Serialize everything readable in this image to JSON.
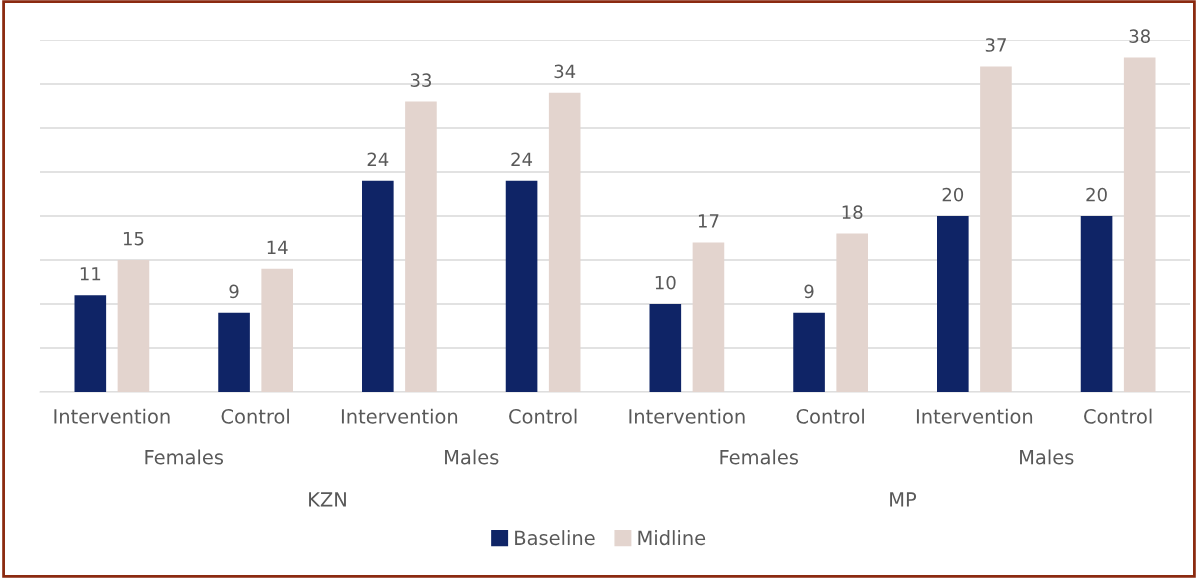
{
  "chart_data": {
    "type": "bar",
    "categories": [
      "Intervention",
      "Control",
      "Intervention",
      "Control",
      "Intervention",
      "Control",
      "Intervention",
      "Control"
    ],
    "series": [
      {
        "name": "Baseline",
        "color": "#0f2466",
        "values": [
          11,
          9,
          24,
          24,
          10,
          9,
          20,
          20
        ]
      },
      {
        "name": "Midline",
        "color": "#e3d4ce",
        "values": [
          15,
          14,
          33,
          34,
          17,
          18,
          37,
          38
        ]
      }
    ],
    "annotations": [
      "Females",
      "Males",
      "Females",
      "Males",
      "KZN",
      "MP"
    ],
    "ylim": [
      0,
      40
    ],
    "yticks": [
      {
        "value": 0,
        "label": null
      },
      {
        "value": 5,
        "label": null
      },
      {
        "value": 10,
        "label": null
      },
      {
        "value": 15,
        "label": null
      },
      {
        "value": 20,
        "label": null
      },
      {
        "value": 25,
        "label": null
      },
      {
        "value": 30,
        "label": null
      },
      {
        "value": 35,
        "label": null
      },
      {
        "value": 40,
        "label": null
      }
    ],
    "grid": "y",
    "data_labels": true,
    "legend": "bottom",
    "tick_labels": "x"
  }
}
